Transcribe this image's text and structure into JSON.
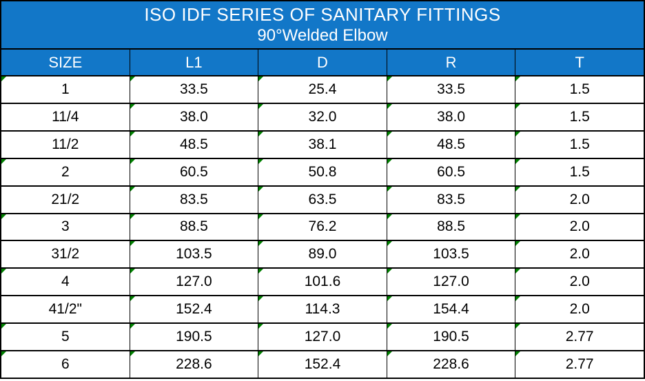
{
  "title": {
    "line1": "ISO IDF SERIES OF SANITARY FITTINGS",
    "line2": "90°Welded Elbow"
  },
  "table": {
    "columns": [
      "SIZE",
      "L1",
      "D",
      "R",
      "T"
    ],
    "rows": [
      {
        "cells": [
          "1",
          "33.5",
          "25.4",
          "33.5",
          "1.5"
        ],
        "indicators": [
          true,
          true,
          true,
          true,
          true
        ]
      },
      {
        "cells": [
          "11/4",
          "38.0",
          "32.0",
          "38.0",
          "1.5"
        ],
        "indicators": [
          false,
          true,
          true,
          true,
          true
        ]
      },
      {
        "cells": [
          "11/2",
          "48.5",
          "38.1",
          "48.5",
          "1.5"
        ],
        "indicators": [
          false,
          true,
          true,
          true,
          true
        ]
      },
      {
        "cells": [
          "2",
          "60.5",
          "50.8",
          "60.5",
          "1.5"
        ],
        "indicators": [
          true,
          true,
          true,
          true,
          true
        ]
      },
      {
        "cells": [
          "21/2",
          "83.5",
          "63.5",
          "83.5",
          "2.0"
        ],
        "indicators": [
          false,
          true,
          true,
          true,
          true
        ]
      },
      {
        "cells": [
          "3",
          "88.5",
          "76.2",
          "88.5",
          "2.0"
        ],
        "indicators": [
          true,
          true,
          true,
          true,
          true
        ]
      },
      {
        "cells": [
          "31/2",
          "103.5",
          "89.0",
          "103.5",
          "2.0"
        ],
        "indicators": [
          false,
          true,
          true,
          true,
          true
        ]
      },
      {
        "cells": [
          "4",
          "127.0",
          "101.6",
          "127.0",
          "2.0"
        ],
        "indicators": [
          true,
          true,
          true,
          true,
          true
        ]
      },
      {
        "cells": [
          "41/2\"",
          "152.4",
          "114.3",
          "154.4",
          "2.0"
        ],
        "indicators": [
          false,
          true,
          true,
          true,
          true
        ]
      },
      {
        "cells": [
          "5",
          "190.5",
          "127.0",
          "190.5",
          "2.77"
        ],
        "indicators": [
          true,
          true,
          true,
          true,
          true
        ]
      },
      {
        "cells": [
          "6",
          "228.6",
          "152.4",
          "228.6",
          "2.77"
        ],
        "indicators": [
          true,
          true,
          true,
          true,
          true
        ]
      }
    ]
  },
  "colors": {
    "header_blue": "#1277C8",
    "border_black": "#000000",
    "indicator_green": "#008000",
    "header_text": "#FFFFFF",
    "body_text": "#000000"
  },
  "chart_data": {
    "type": "table",
    "title": "ISO IDF SERIES OF SANITARY FITTINGS — 90°Welded Elbow",
    "columns": [
      "SIZE",
      "L1",
      "D",
      "R",
      "T"
    ],
    "rows": [
      [
        "1",
        33.5,
        25.4,
        33.5,
        1.5
      ],
      [
        "11/4",
        38.0,
        32.0,
        38.0,
        1.5
      ],
      [
        "11/2",
        48.5,
        38.1,
        48.5,
        1.5
      ],
      [
        "2",
        60.5,
        50.8,
        60.5,
        1.5
      ],
      [
        "21/2",
        83.5,
        63.5,
        83.5,
        2.0
      ],
      [
        "3",
        88.5,
        76.2,
        88.5,
        2.0
      ],
      [
        "31/2",
        103.5,
        89.0,
        103.5,
        2.0
      ],
      [
        "4",
        127.0,
        101.6,
        127.0,
        2.0
      ],
      [
        "41/2\"",
        152.4,
        114.3,
        154.4,
        2.0
      ],
      [
        "5",
        190.5,
        127.0,
        190.5,
        2.77
      ],
      [
        "6",
        228.6,
        152.4,
        228.6,
        2.77
      ]
    ]
  }
}
